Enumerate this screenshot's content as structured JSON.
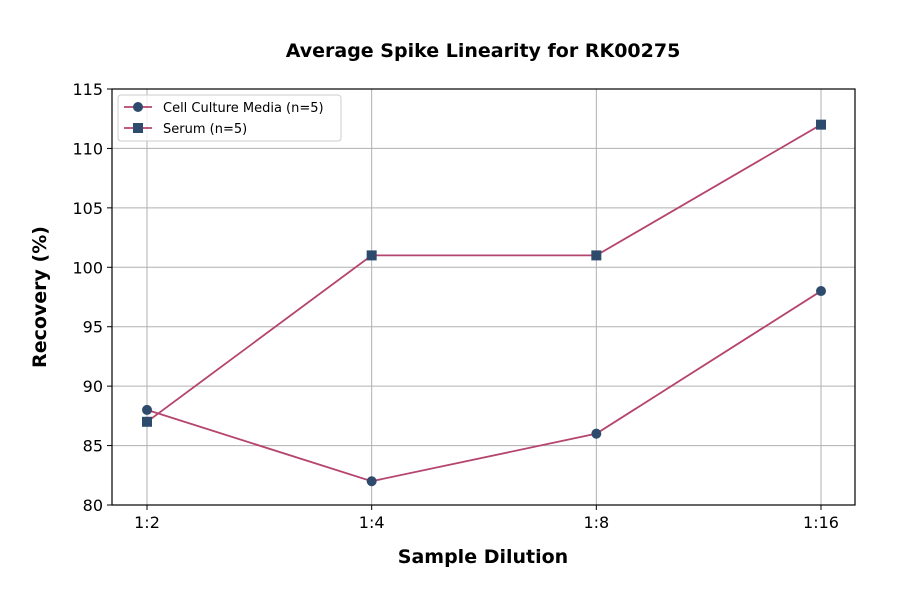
{
  "chart_data": {
    "type": "line",
    "title": "Average Spike Linearity for RK00275",
    "xlabel": "Sample Dilution",
    "ylabel": "Recovery (%)",
    "categories": [
      "1:2",
      "1:4",
      "1:8",
      "1:16"
    ],
    "ylim": [
      80,
      115
    ],
    "yticks": [
      80,
      85,
      90,
      95,
      100,
      105,
      110,
      115
    ],
    "grid": true,
    "legend_position": "top-left",
    "series": [
      {
        "name": "Cell Culture Media (n=5)",
        "marker": "circle",
        "values": [
          88,
          82,
          86,
          98
        ]
      },
      {
        "name": "Serum (n=5)",
        "marker": "square",
        "values": [
          87,
          101,
          101,
          112
        ]
      }
    ],
    "colors": {
      "line": "#b5446e",
      "marker": "#2e4b6d"
    }
  }
}
